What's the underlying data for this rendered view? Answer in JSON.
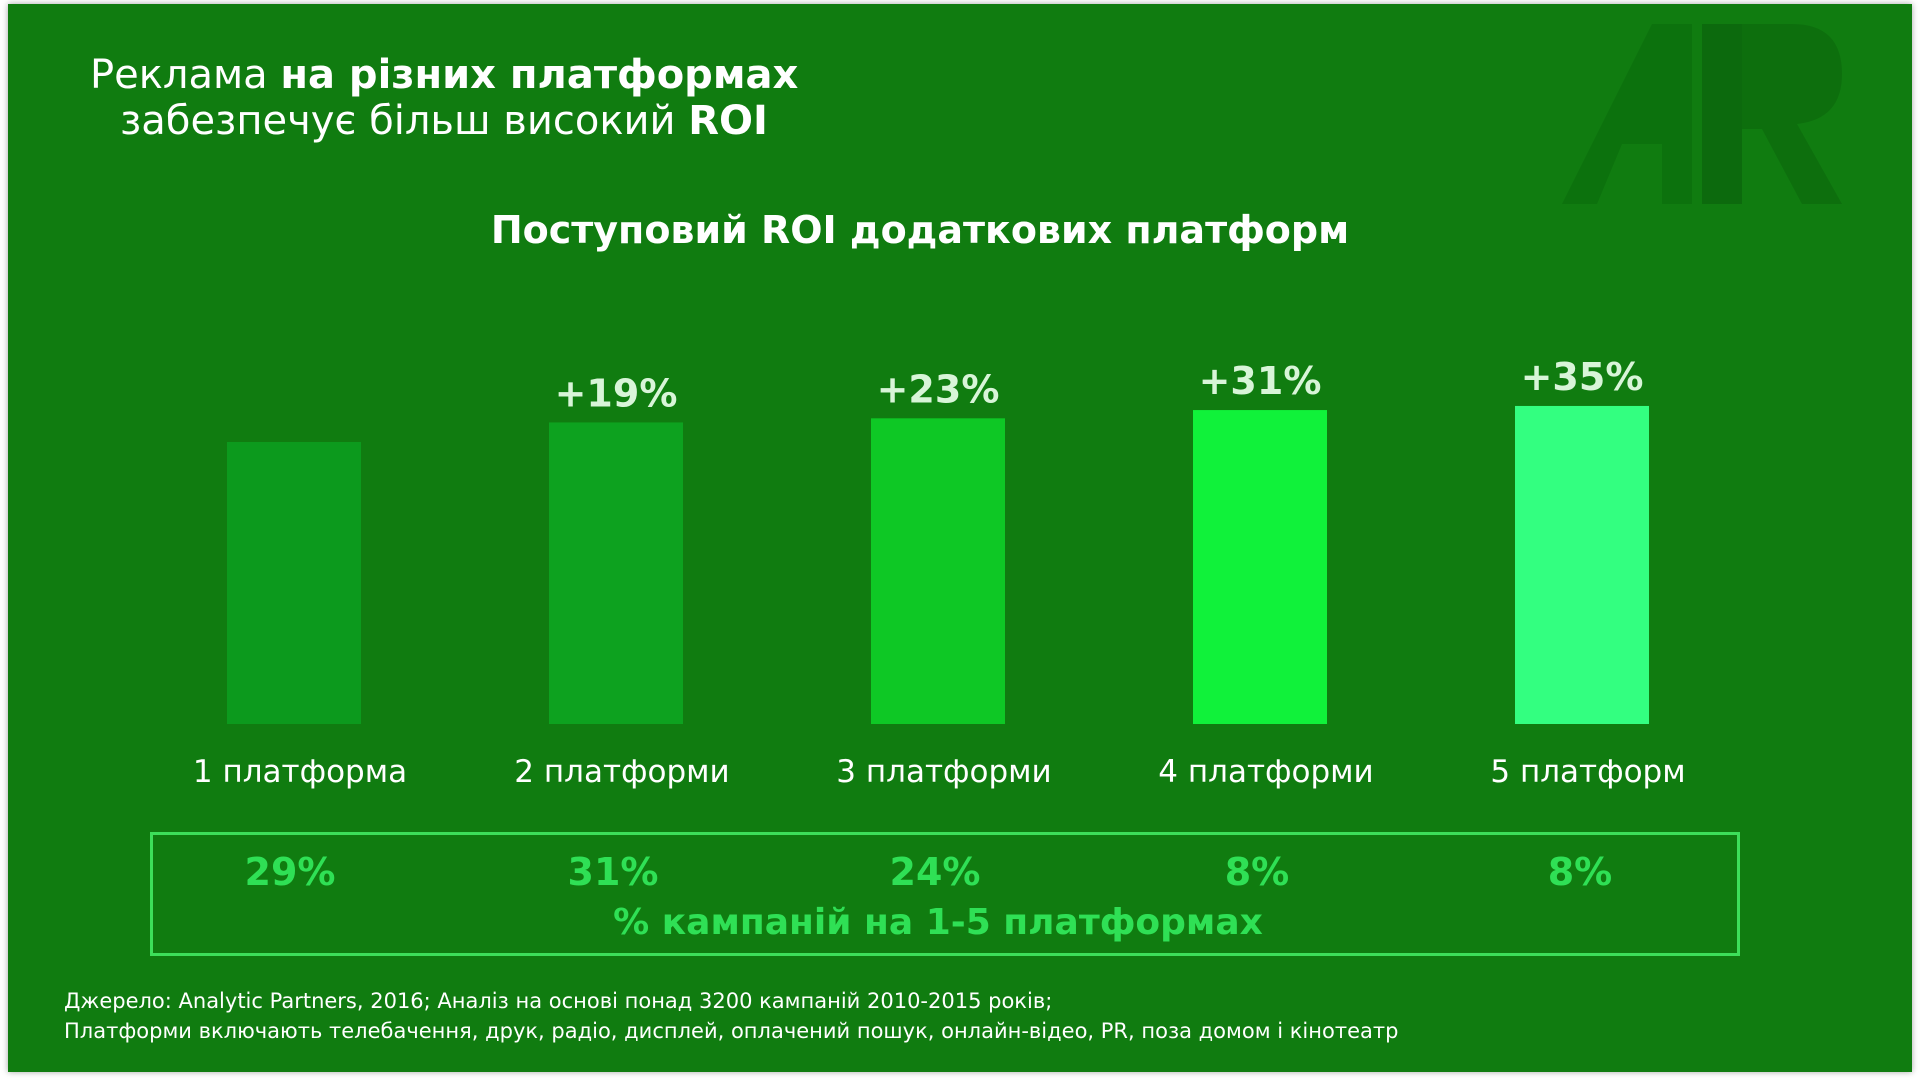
{
  "headline": {
    "line1_normal": "Реклама ",
    "line1_bold": "на різних платформах",
    "line2_normal": "забезпечує більш високий ",
    "line2_bold": "ROI"
  },
  "colors": {
    "background": "#107c10",
    "bar_colors": [
      "#0c9a1d",
      "#0da21f",
      "#0ec825",
      "#10f23a",
      "#33ff80"
    ],
    "share_color": "#2fe055"
  },
  "chart_data": {
    "type": "bar",
    "title": "Поступовий ROI додаткових платформ",
    "categories": [
      "1 платформа",
      "2 платформи",
      "3 платформи",
      "4 платформи",
      "5 платформ"
    ],
    "values": [
      0,
      19,
      23,
      31,
      35
    ],
    "data_labels": [
      "",
      "+19%",
      "+23%",
      "+31%",
      "+35%"
    ],
    "ylim": [
      0,
      100
    ],
    "xlabel": "",
    "ylabel": "",
    "grid": false,
    "legend": "none"
  },
  "campaign_share": {
    "values": [
      "29%",
      "31%",
      "24%",
      "8%",
      "8%"
    ],
    "caption": "% кампаній на 1-5 платформах"
  },
  "source": {
    "line1": "Джерело: Analytic Partners, 2016; Аналіз на основі понад 3200 кампаній 2010-2015 років;",
    "line2": "Платформи включають телебачення, друк, радіо, дисплей, оплачений пошук, онлайн-відео, PR, поза домом і кінотеатр"
  }
}
